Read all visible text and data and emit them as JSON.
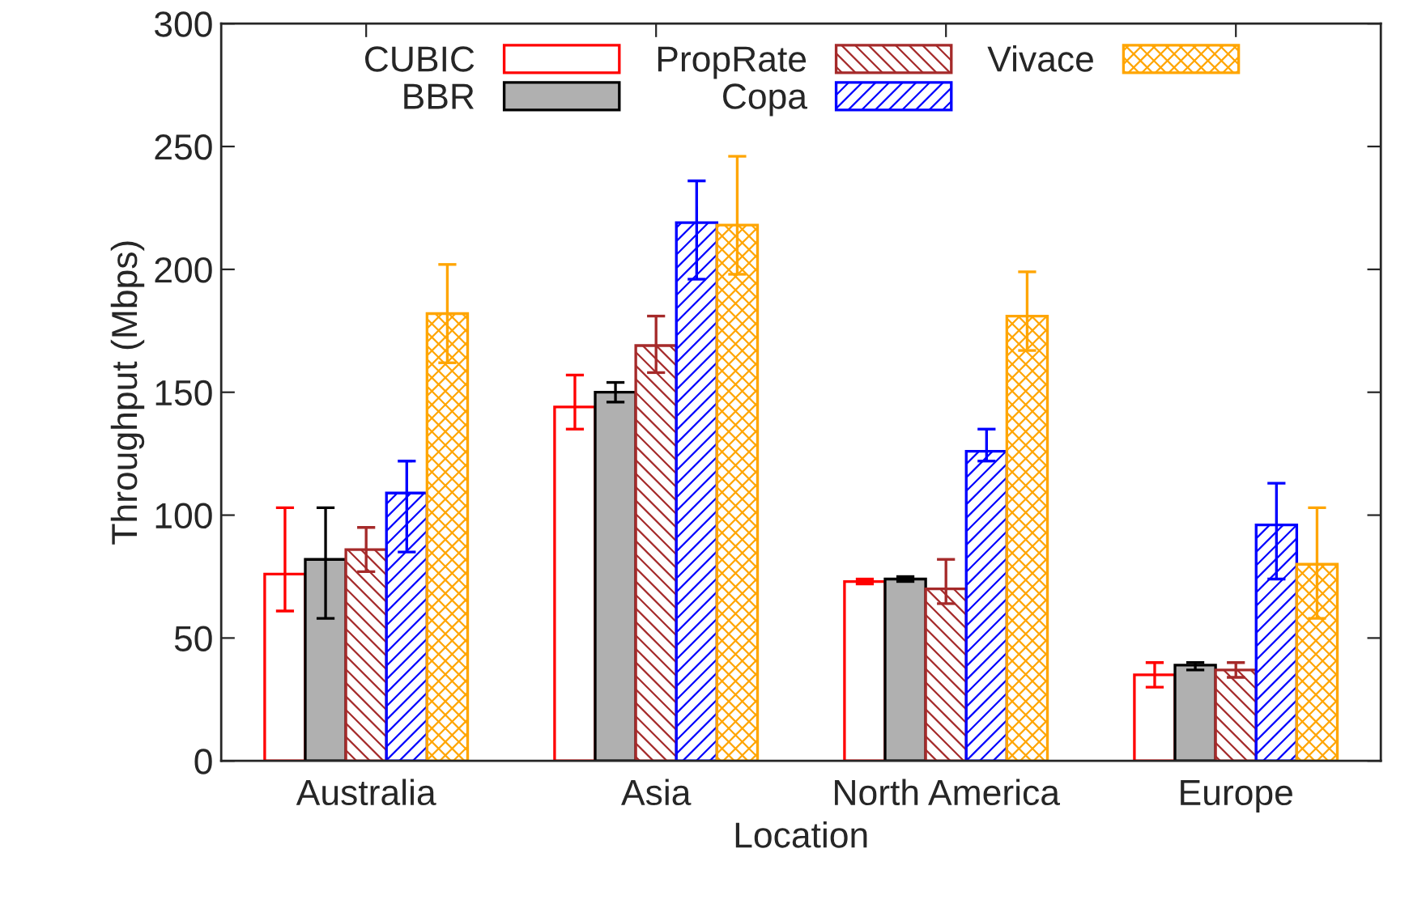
{
  "chart_data": {
    "type": "bar",
    "xlabel": "Location",
    "ylabel": "Throughput (Mbps)",
    "categories": [
      "Australia",
      "Asia",
      "North America",
      "Europe"
    ],
    "series": [
      {
        "name": "CUBIC",
        "color": "#ff0000",
        "values": [
          76,
          144,
          73,
          35
        ],
        "errors": [
          [
            61,
            103
          ],
          [
            135,
            157
          ],
          [
            72,
            74
          ],
          [
            30,
            40
          ]
        ]
      },
      {
        "name": "BBR",
        "color": "#b0b0b0",
        "values": [
          82,
          150,
          74,
          39
        ],
        "errors": [
          [
            58,
            103
          ],
          [
            146,
            154
          ],
          [
            73,
            75
          ],
          [
            37,
            40
          ]
        ]
      },
      {
        "name": "PropRate",
        "color": "#a52a2a",
        "values": [
          86,
          169,
          70,
          37
        ],
        "errors": [
          [
            77,
            95
          ],
          [
            158,
            181
          ],
          [
            64,
            82
          ],
          [
            34,
            40
          ]
        ]
      },
      {
        "name": "Copa",
        "color": "#0000ff",
        "values": [
          109,
          219,
          126,
          96
        ],
        "errors": [
          [
            85,
            122
          ],
          [
            196,
            236
          ],
          [
            122,
            135
          ],
          [
            74,
            113
          ]
        ]
      },
      {
        "name": "Vivace",
        "color": "#ffa500",
        "values": [
          182,
          218,
          181,
          80
        ],
        "errors": [
          [
            162,
            202
          ],
          [
            198,
            246
          ],
          [
            167,
            199
          ],
          [
            58,
            103
          ]
        ]
      }
    ],
    "ylim": [
      0,
      300
    ],
    "yticks": [
      0,
      50,
      100,
      150,
      200,
      250,
      300
    ],
    "grid": false,
    "legend": "top"
  }
}
